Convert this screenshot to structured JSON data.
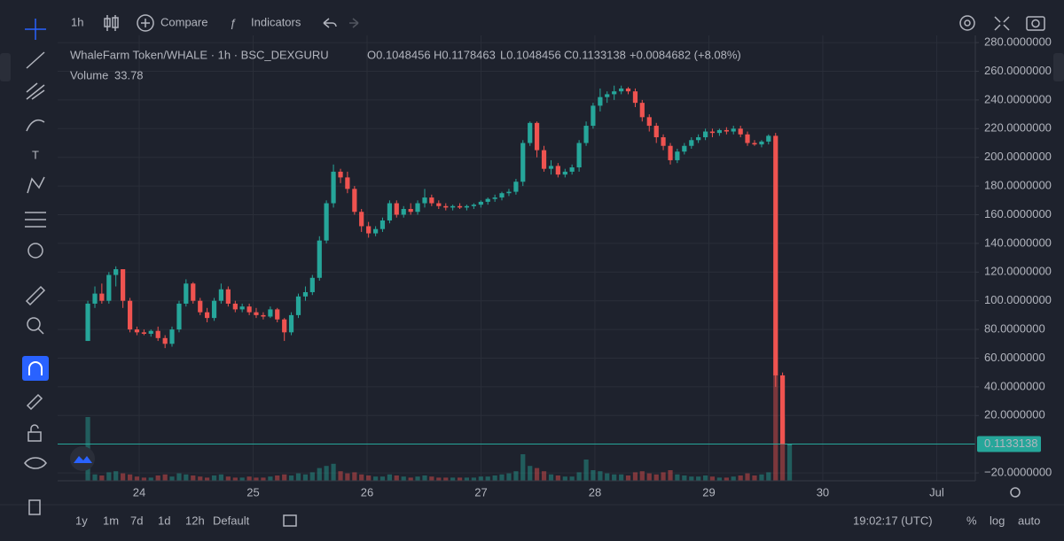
{
  "toolbar": {
    "interval": "1h",
    "compare": "Compare",
    "indicators": "Indicators"
  },
  "legend": {
    "symbol": "WhaleFarm Token/WHALE · 1h · BSC_DEXGURU",
    "open": "O0.1048456",
    "high": "H0.1178463",
    "low": "L0.1048456",
    "close": "C0.1133138",
    "change": "+0.0084682 (+8.08%)",
    "volume": "Volume"
  },
  "bottom_bar": {
    "ranges": [
      "1y",
      "1m",
      "7d",
      "1d",
      "12h"
    ],
    "default": "Default",
    "clock": "19:02:17 (UTC)",
    "percent": "%",
    "log": "log",
    "auto": "auto"
  },
  "chart_data": {
    "type": "candlestick",
    "up_color": "#26a69a",
    "down_color": "#ef5350",
    "x": [
      23.549,
      23.611,
      23.672,
      23.734,
      23.795,
      23.857,
      23.919,
      23.98,
      24.042,
      24.103,
      24.165,
      24.227,
      24.288,
      24.35,
      24.411,
      24.473,
      24.535,
      24.596,
      24.658,
      24.719,
      24.781,
      24.843,
      24.904,
      24.966,
      25.027,
      25.089,
      25.151,
      25.212,
      25.274,
      25.335,
      25.397,
      25.459,
      25.52,
      25.582,
      25.643,
      25.705,
      25.767,
      25.828,
      25.89,
      25.951,
      26.013,
      26.075,
      26.136,
      26.198,
      26.259,
      26.321,
      26.383,
      26.444,
      26.506,
      26.567,
      26.629,
      26.691,
      26.752,
      26.814,
      26.875,
      26.937,
      26.999,
      27.06,
      27.122,
      27.183,
      27.245,
      27.307,
      27.368,
      27.43,
      27.491,
      27.553,
      27.615,
      27.676,
      27.738,
      27.799,
      27.861,
      27.923,
      27.984,
      28.046,
      28.107,
      28.169,
      28.231,
      28.292,
      28.354,
      28.415,
      28.477,
      28.539,
      28.6,
      28.662,
      28.723,
      28.785,
      28.847,
      28.908,
      28.97,
      29.031,
      29.093,
      29.155,
      29.216,
      29.278,
      29.339,
      29.401,
      29.463,
      29.524,
      29.586,
      29.647,
      29.709
    ],
    "open": [
      72,
      98,
      105,
      100,
      118,
      122,
      100,
      80,
      78,
      77,
      79,
      74,
      70,
      80,
      98,
      112,
      100,
      92,
      88,
      100,
      108,
      98,
      94,
      96,
      92,
      90,
      89,
      94,
      87,
      78,
      90,
      103,
      106,
      116,
      142,
      168,
      190,
      186,
      178,
      162,
      152,
      147,
      150,
      156,
      168,
      160,
      164,
      162,
      168,
      172,
      168,
      166,
      165,
      166,
      165,
      166,
      167,
      169,
      171,
      172,
      175,
      176,
      183,
      210,
      224,
      205,
      192,
      194,
      188,
      190,
      193,
      210,
      222,
      236,
      242,
      244,
      246,
      248,
      246,
      238,
      228,
      222,
      214,
      208,
      198,
      204,
      208,
      212,
      214,
      218,
      217,
      219,
      218,
      220,
      216,
      210,
      209,
      211,
      215,
      48,
      0.1048456
    ],
    "high": [
      100,
      110,
      112,
      120,
      124,
      122,
      102,
      82,
      80,
      80,
      82,
      76,
      82,
      100,
      115,
      113,
      102,
      95,
      102,
      112,
      110,
      100,
      98,
      98,
      95,
      92,
      96,
      95,
      88,
      92,
      105,
      110,
      118,
      145,
      170,
      195,
      192,
      190,
      180,
      164,
      155,
      152,
      158,
      170,
      170,
      166,
      168,
      170,
      178,
      174,
      170,
      168,
      167,
      168,
      167,
      168,
      170,
      172,
      174,
      176,
      178,
      185,
      212,
      225,
      225,
      208,
      198,
      196,
      192,
      195,
      212,
      225,
      238,
      248,
      246,
      250,
      250,
      249,
      248,
      240,
      230,
      224,
      216,
      210,
      206,
      210,
      214,
      216,
      220,
      220,
      220,
      221,
      222,
      222,
      218,
      212,
      212,
      216,
      217,
      50,
      0.1178463
    ],
    "low": [
      72,
      95,
      98,
      98,
      110,
      95,
      78,
      76,
      76,
      75,
      72,
      67,
      68,
      78,
      96,
      98,
      90,
      85,
      86,
      98,
      96,
      92,
      92,
      90,
      88,
      87,
      88,
      85,
      72,
      76,
      88,
      100,
      104,
      114,
      140,
      165,
      182,
      175,
      160,
      148,
      144,
      145,
      148,
      154,
      158,
      158,
      160,
      160,
      165,
      166,
      164,
      163,
      163,
      164,
      163,
      164,
      165,
      167,
      169,
      170,
      173,
      174,
      180,
      208,
      200,
      190,
      188,
      186,
      186,
      188,
      190,
      208,
      220,
      232,
      238,
      240,
      244,
      244,
      235,
      225,
      218,
      210,
      205,
      195,
      196,
      202,
      206,
      210,
      212,
      214,
      215,
      216,
      216,
      214,
      208,
      208,
      207,
      209,
      40,
      0.1,
      0.1048456
    ],
    "close": [
      98,
      105,
      100,
      118,
      122,
      100,
      80,
      78,
      77,
      79,
      74,
      70,
      80,
      98,
      112,
      100,
      92,
      88,
      100,
      108,
      98,
      94,
      96,
      92,
      90,
      89,
      94,
      87,
      78,
      90,
      103,
      106,
      116,
      142,
      168,
      190,
      186,
      178,
      162,
      152,
      147,
      150,
      156,
      168,
      160,
      164,
      162,
      168,
      172,
      168,
      166,
      165,
      166,
      165,
      166,
      167,
      169,
      171,
      172,
      175,
      176,
      183,
      210,
      224,
      205,
      192,
      194,
      188,
      190,
      193,
      210,
      222,
      236,
      242,
      244,
      246,
      248,
      246,
      238,
      228,
      222,
      214,
      208,
      198,
      204,
      208,
      212,
      214,
      218,
      217,
      219,
      218,
      220,
      216,
      210,
      209,
      211,
      215,
      48,
      0.1048456,
      0.1133138
    ],
    "volume": [
      60,
      6,
      5,
      8,
      9,
      7,
      6,
      4,
      3,
      3,
      5,
      6,
      4,
      7,
      6,
      5,
      4,
      3,
      5,
      6,
      4,
      3,
      3,
      4,
      3,
      3,
      4,
      5,
      6,
      5,
      7,
      6,
      8,
      12,
      14,
      16,
      9,
      7,
      8,
      6,
      5,
      4,
      4,
      6,
      5,
      4,
      3,
      4,
      5,
      4,
      3,
      3,
      3,
      3,
      3,
      3,
      4,
      4,
      5,
      6,
      7,
      9,
      25,
      14,
      12,
      9,
      6,
      5,
      4,
      4,
      8,
      20,
      10,
      9,
      7,
      6,
      6,
      5,
      8,
      9,
      7,
      6,
      8,
      10,
      6,
      5,
      4,
      4,
      5,
      4,
      3,
      3,
      4,
      5,
      7,
      5,
      6,
      8,
      100,
      60,
      33.78
    ],
    "price_line": 0.1133138,
    "xlim": [
      23.284,
      31.339
    ],
    "xticks": [
      24,
      25,
      26,
      27,
      28,
      29,
      30,
      {
        "value": 31,
        "label": "Jul"
      }
    ],
    "ylim": [
      -25.5,
      285
    ],
    "yticks": [
      {
        "value": 280,
        "label": "280.0000000"
      },
      {
        "value": 260,
        "label": "260.0000000"
      },
      {
        "value": 240,
        "label": "240.0000000"
      },
      {
        "value": 220,
        "label": "220.0000000"
      },
      {
        "value": 200,
        "label": "200.0000000"
      },
      {
        "value": 180,
        "label": "180.0000000"
      },
      {
        "value": 160,
        "label": "160.0000000"
      },
      {
        "value": 140,
        "label": "140.0000000"
      },
      {
        "value": 120,
        "label": "120.0000000"
      },
      {
        "value": 100,
        "label": "100.0000000"
      },
      {
        "value": 80,
        "label": "80.0000000"
      },
      {
        "value": 60,
        "label": "60.0000000"
      },
      {
        "value": 40,
        "label": "40.0000000"
      },
      {
        "value": 20,
        "label": "20.0000000"
      },
      {
        "value": -20,
        "label": "−20.0000000"
      }
    ],
    "grid": true
  }
}
